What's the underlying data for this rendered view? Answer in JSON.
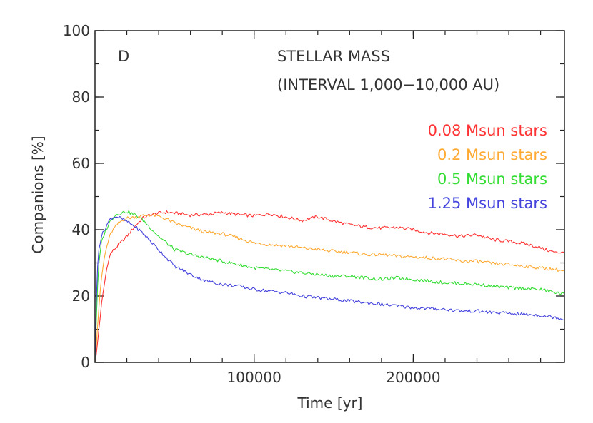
{
  "chart_data": {
    "type": "line",
    "panel_label": "D",
    "annotation_line1": "STELLAR MASS",
    "annotation_line2": "(INTERVAL 1,000−10,000 AU)",
    "xlabel": "Time [yr]",
    "ylabel": "Companions [%]",
    "xlim": [
      0,
      295000
    ],
    "ylim": [
      0,
      100
    ],
    "x_major_ticks": [
      100000,
      200000
    ],
    "x_minor_step": 20000,
    "y_major_ticks": [
      0,
      20,
      40,
      60,
      80,
      100
    ],
    "y_minor_step": 10,
    "grid": false,
    "legend_position": "top-right",
    "x": [
      0,
      1000,
      2000,
      4000,
      6000,
      8000,
      10000,
      13000,
      16000,
      20000,
      25000,
      30000,
      35000,
      40000,
      45000,
      50000,
      60000,
      70000,
      80000,
      90000,
      100000,
      110000,
      120000,
      130000,
      140000,
      150000,
      160000,
      170000,
      180000,
      190000,
      200000,
      210000,
      220000,
      230000,
      240000,
      250000,
      260000,
      270000,
      280000,
      290000,
      295000
    ],
    "series": [
      {
        "name": "0.08 Msun stars",
        "color": "#ff3333",
        "values": [
          0,
          3,
          8,
          17,
          24,
          30,
          33,
          34.5,
          36,
          38,
          41,
          43.5,
          44.5,
          45,
          45.3,
          45,
          44.4,
          44.6,
          45.2,
          44.5,
          44.2,
          44.8,
          43.8,
          42.8,
          43.9,
          42.6,
          41.5,
          40.8,
          40.5,
          40.7,
          40,
          39,
          38.7,
          38,
          38.5,
          37,
          36.5,
          35.8,
          34.5,
          33,
          33.5
        ]
      },
      {
        "name": "0.2 Msun stars",
        "color": "#ffaa33",
        "values": [
          0,
          6,
          14,
          25,
          32,
          36,
          39,
          41,
          42.5,
          43.5,
          43.8,
          44.2,
          44.5,
          44,
          43.2,
          42,
          40.5,
          39.2,
          38.8,
          37.5,
          36,
          35.5,
          35.2,
          34.5,
          34,
          33.5,
          33.2,
          32.5,
          32.5,
          32,
          31.8,
          31.5,
          31.2,
          30.5,
          30.5,
          29.8,
          29.5,
          29,
          28.5,
          28,
          27.5
        ]
      },
      {
        "name": "0.5 Msun stars",
        "color": "#33dd33",
        "values": [
          0,
          15,
          28,
          36,
          39,
          41,
          43,
          44.5,
          45,
          45.5,
          44.5,
          43,
          40.5,
          38,
          36,
          34,
          32.5,
          31.5,
          30.5,
          29.5,
          28.5,
          28,
          27.5,
          27,
          26.5,
          26,
          26,
          25.5,
          25,
          25.5,
          25,
          24.5,
          24,
          23.8,
          23.5,
          23,
          22.5,
          22.3,
          22,
          21,
          20.5
        ]
      },
      {
        "name": "1.25 Msun stars",
        "color": "#4444dd",
        "values": [
          0,
          22,
          33,
          38,
          40,
          42,
          43.5,
          44,
          43.5,
          42.5,
          41,
          39,
          36.5,
          34,
          31.5,
          29,
          26.5,
          24.5,
          23.5,
          23,
          22,
          21.5,
          21,
          20,
          19.5,
          19,
          18.5,
          18,
          17.5,
          17,
          16.5,
          16.2,
          16,
          15.5,
          15.5,
          15,
          14.8,
          14.5,
          14.2,
          13.5,
          13
        ]
      }
    ]
  }
}
